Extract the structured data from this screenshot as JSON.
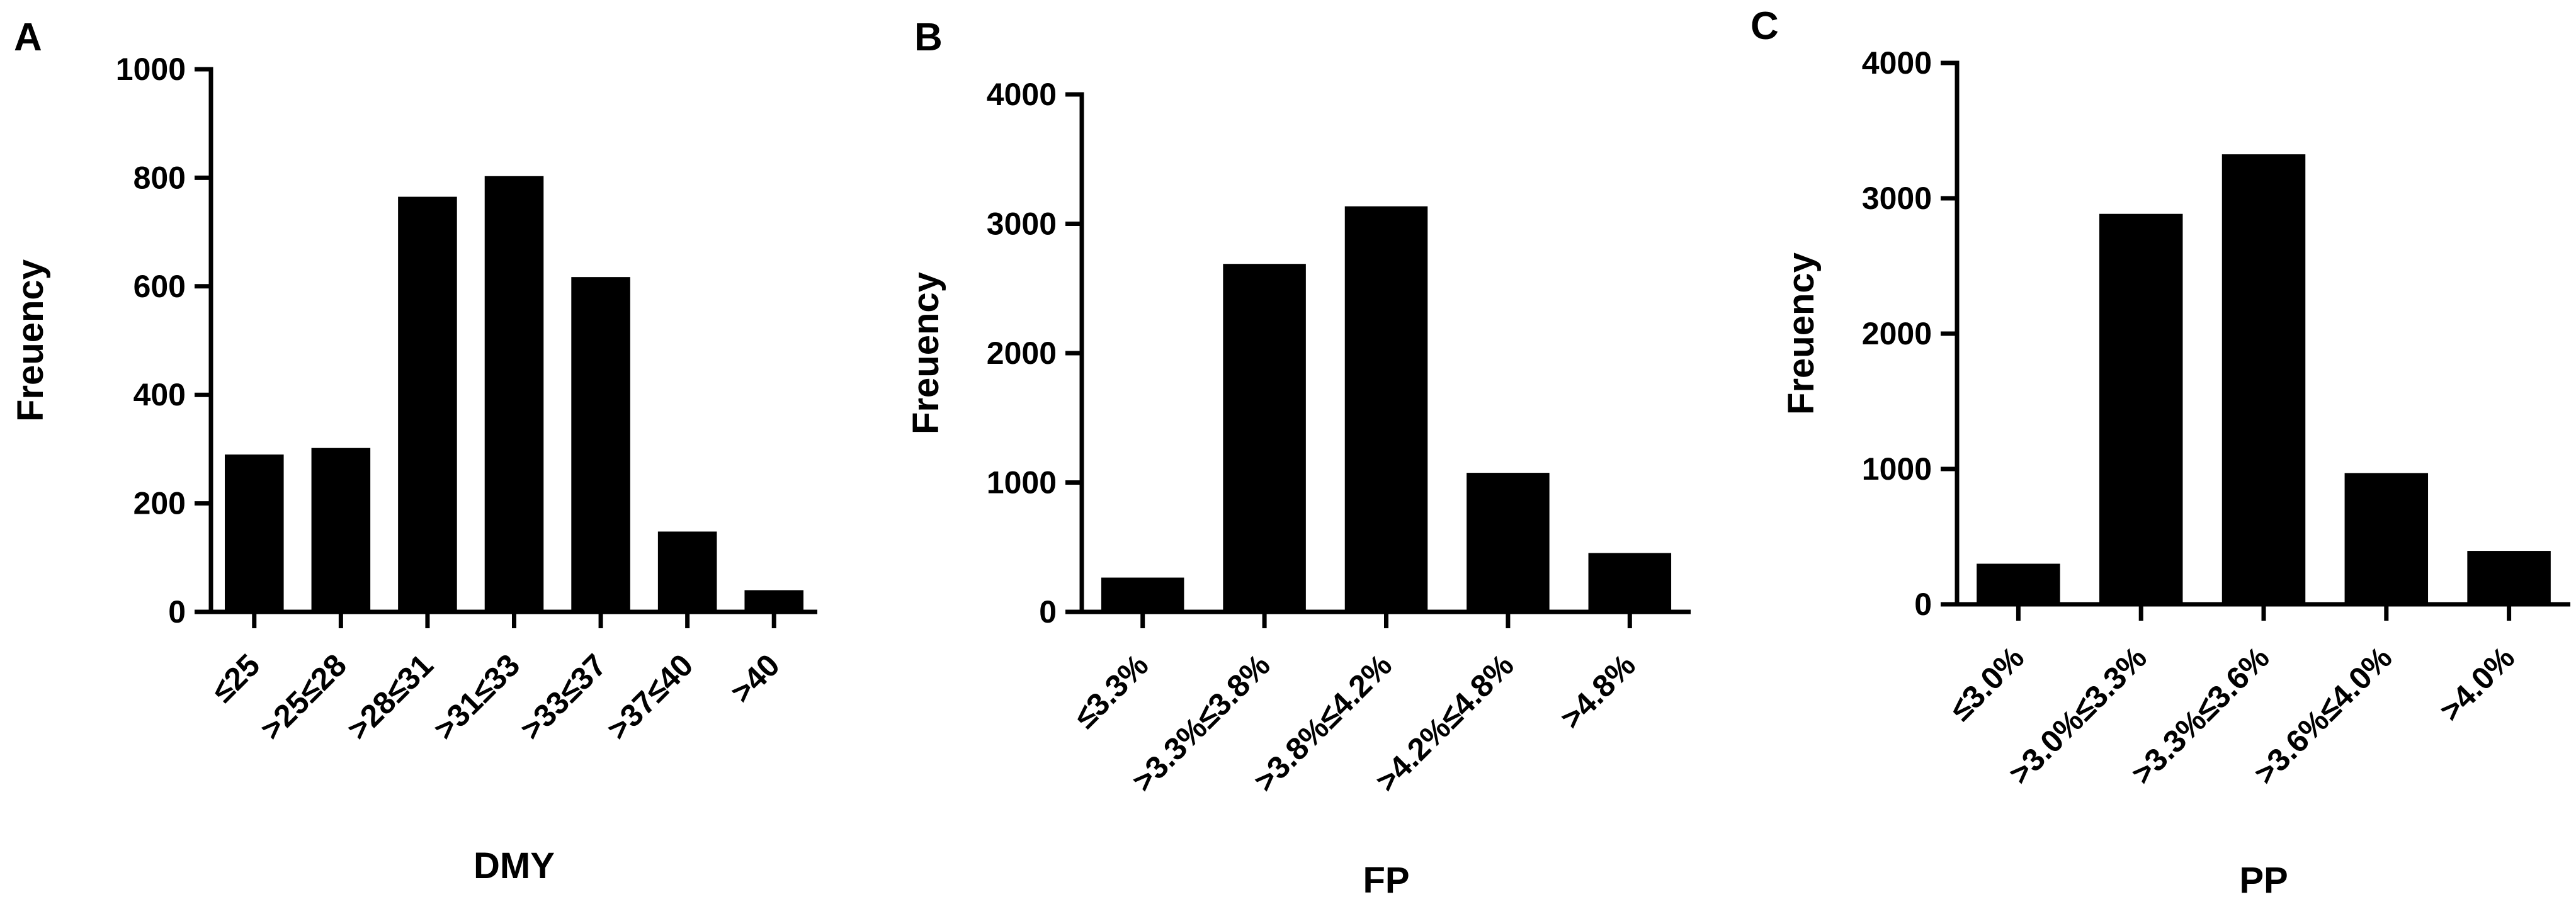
{
  "figure": {
    "bar_color": "#000000",
    "axis_color": "#000000",
    "background": "#ffffff"
  },
  "chart_data": [
    {
      "panel": "A",
      "type": "bar",
      "xlabel": "DMY",
      "ylabel": "Freuency",
      "categories": [
        "≤25",
        ">25≤28",
        ">28≤31",
        ">31≤33",
        ">33≤37",
        ">37≤40",
        ">40"
      ],
      "values": [
        290,
        302,
        765,
        803,
        617,
        148,
        40
      ],
      "ylim": [
        0,
        1000
      ],
      "yticks": [
        0,
        200,
        400,
        600,
        800,
        1000
      ],
      "grid": false
    },
    {
      "panel": "B",
      "type": "bar",
      "xlabel": "FP",
      "ylabel": "Freuency",
      "categories": [
        "≤3.3%",
        ">3.3%≤3.8%",
        ">3.8%≤4.2%",
        ">4.2%≤4.8%",
        ">4.8%"
      ],
      "values": [
        265,
        2690,
        3135,
        1075,
        455
      ],
      "ylim": [
        0,
        4000
      ],
      "yticks": [
        0,
        1000,
        2000,
        3000,
        4000
      ],
      "grid": false
    },
    {
      "panel": "C",
      "type": "bar",
      "xlabel": "PP",
      "ylabel": "Freuency",
      "categories": [
        "≤3.0%",
        ">3.0%≤3.3%",
        ">3.3%≤3.6%",
        ">3.6%≤4.0%",
        ">4.0%"
      ],
      "values": [
        300,
        2885,
        3325,
        970,
        395
      ],
      "ylim": [
        0,
        4000
      ],
      "yticks": [
        0,
        1000,
        2000,
        3000,
        4000
      ],
      "grid": false
    }
  ]
}
